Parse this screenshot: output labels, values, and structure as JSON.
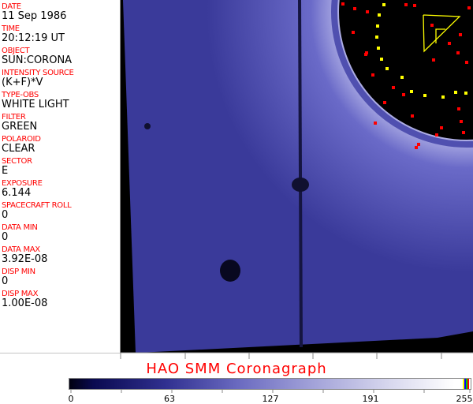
{
  "fields": [
    {
      "label": "DATE",
      "value": "11 Sep 1986"
    },
    {
      "label": "TIME",
      "value": "20:12:19 UT"
    },
    {
      "label": "OBJECT",
      "value": "SUN:CORONA"
    },
    {
      "label": "INTENSITY SOURCE",
      "value": "(K+F)*V"
    },
    {
      "label": "TYPE-OBS",
      "value": "WHITE LIGHT"
    },
    {
      "label": "FILTER",
      "value": "GREEN"
    },
    {
      "label": "POLAROID",
      "value": "CLEAR"
    },
    {
      "label": "SECTOR",
      "value": "E"
    },
    {
      "label": "EXPOSURE",
      "value": "6.144"
    },
    {
      "label": "SPACECRAFT ROLL",
      "value": "0"
    },
    {
      "label": "DATA MIN",
      "value": "0"
    },
    {
      "label": "DATA MAX",
      "value": "3.92E-08"
    },
    {
      "label": "DISP MIN",
      "value": "0"
    },
    {
      "label": "DISP MAX",
      "value": "1.00E-08"
    }
  ],
  "title": "HAO  SMM Coronagraph",
  "colorbar": {
    "ticks": [
      "0",
      "63",
      "127",
      "191",
      "255"
    ],
    "end_colors": [
      "#ffff00",
      "#0000ff",
      "#00c000",
      "#ff0000"
    ]
  },
  "colors": {
    "label": "#ff0000",
    "image": "#3c3ca0"
  }
}
